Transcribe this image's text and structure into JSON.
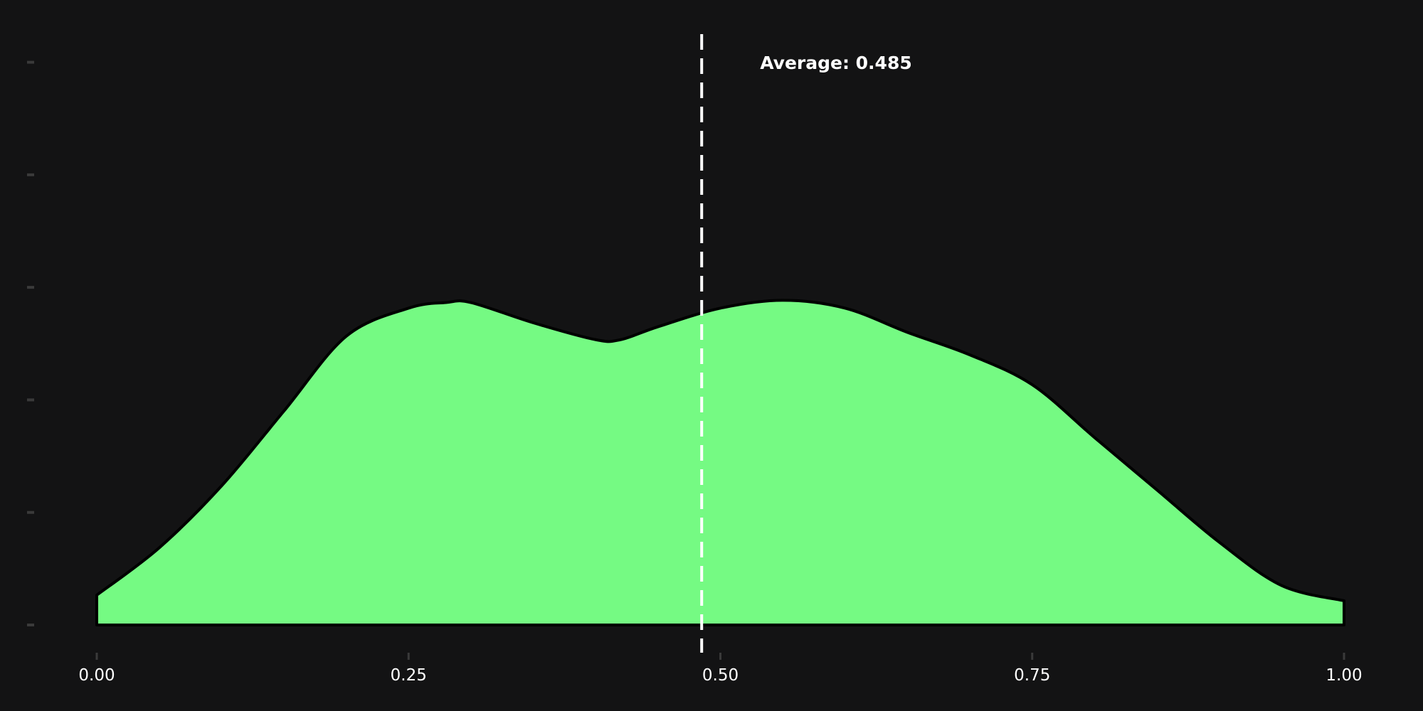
{
  "colors": {
    "background": "#131314",
    "fill": "#75FA83",
    "outline": "#000000",
    "mean_line": "#FFFFFF",
    "text": "#FFFFFF",
    "tick": "#3A3A3A"
  },
  "chart_data": {
    "type": "area",
    "title": "",
    "xlabel": "",
    "ylabel": "",
    "xlim": [
      0,
      1
    ],
    "ylim": [
      0,
      1.05
    ],
    "grid": false,
    "x_ticks": [
      {
        "value": 0.0,
        "label": "0.00"
      },
      {
        "value": 0.25,
        "label": "0.25"
      },
      {
        "value": 0.5,
        "label": "0.50"
      },
      {
        "value": 0.75,
        "label": "0.75"
      },
      {
        "value": 1.0,
        "label": "1.00"
      }
    ],
    "y_ticks": [
      0,
      0.2,
      0.4,
      0.6,
      0.8,
      1.0
    ],
    "y_tick_labels_shown": false,
    "series": [
      {
        "x": [
          0.0,
          0.05,
          0.1,
          0.15,
          0.2,
          0.25,
          0.28,
          0.3,
          0.35,
          0.4,
          0.42,
          0.45,
          0.5,
          0.55,
          0.6,
          0.65,
          0.7,
          0.75,
          0.8,
          0.85,
          0.9,
          0.95,
          1.0
        ],
        "y": [
          0.053,
          0.137,
          0.247,
          0.38,
          0.513,
          0.563,
          0.573,
          0.573,
          0.537,
          0.507,
          0.507,
          0.53,
          0.563,
          0.577,
          0.563,
          0.52,
          0.48,
          0.427,
          0.333,
          0.24,
          0.147,
          0.07,
          0.043
        ]
      }
    ],
    "annotations": [
      {
        "type": "vline",
        "x": 0.485,
        "style": "dashed",
        "label": "Average: 0.485"
      }
    ]
  }
}
